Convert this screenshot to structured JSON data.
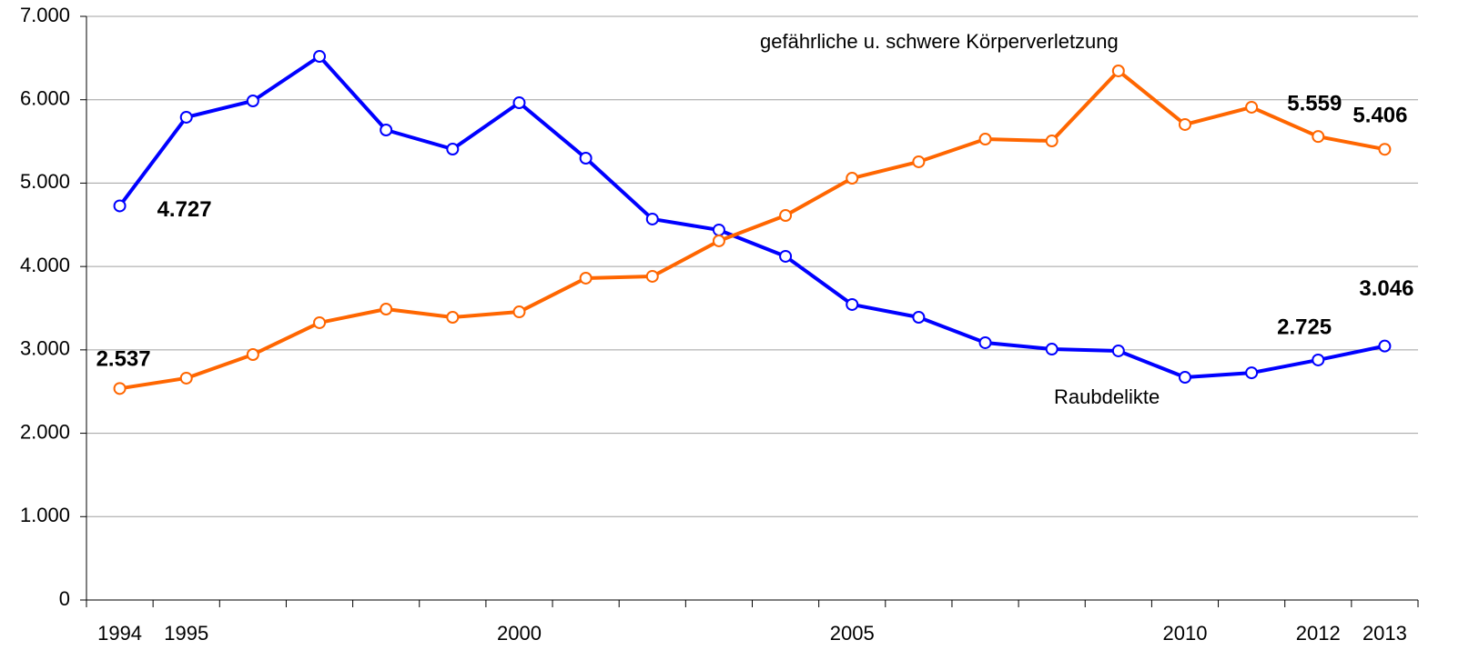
{
  "chart_data": {
    "type": "line",
    "categories": [
      "1994",
      "1995",
      null,
      null,
      null,
      null,
      "2000",
      null,
      null,
      null,
      null,
      "2005",
      null,
      null,
      null,
      null,
      "2010",
      null,
      "2012",
      "2013"
    ],
    "series": [
      {
        "name": "Raubdelikte",
        "color": "#0000ff",
        "values": [
          4727,
          5790,
          5986,
          6520,
          5637,
          5408,
          5964,
          5299,
          4569,
          4438,
          4122,
          3544,
          3391,
          3086,
          3009,
          2988,
          2671,
          2725,
          2879,
          3046
        ],
        "value_labels": [
          "4.727",
          null,
          null,
          null,
          null,
          null,
          null,
          null,
          null,
          null,
          null,
          null,
          null,
          null,
          null,
          null,
          null,
          "2.725",
          null,
          "3.046"
        ]
      },
      {
        "name": "gefährliche u. schwere Körperverletzung",
        "color": "#ff6600",
        "values": [
          2537,
          2661,
          2944,
          3326,
          3489,
          3391,
          3456,
          3860,
          3882,
          4307,
          4612,
          5059,
          5256,
          5528,
          5506,
          6346,
          5703,
          5910,
          5559,
          5406
        ],
        "value_labels": [
          "2.537",
          null,
          null,
          null,
          null,
          null,
          null,
          null,
          null,
          null,
          null,
          null,
          null,
          null,
          null,
          null,
          null,
          null,
          "5.559",
          "5.406"
        ]
      }
    ],
    "ylim": [
      0,
      7000
    ],
    "yticks": [
      0,
      {
        "value": 1000,
        "label": "1.000"
      },
      {
        "value": 2000,
        "label": "2.000"
      },
      {
        "value": 3000,
        "label": "3.000"
      },
      {
        "value": 4000,
        "label": "4.000"
      },
      {
        "value": 5000,
        "label": "5.000"
      },
      {
        "value": 6000,
        "label": "6.000"
      },
      {
        "value": 7000,
        "label": "7.000"
      }
    ],
    "grid": true
  }
}
